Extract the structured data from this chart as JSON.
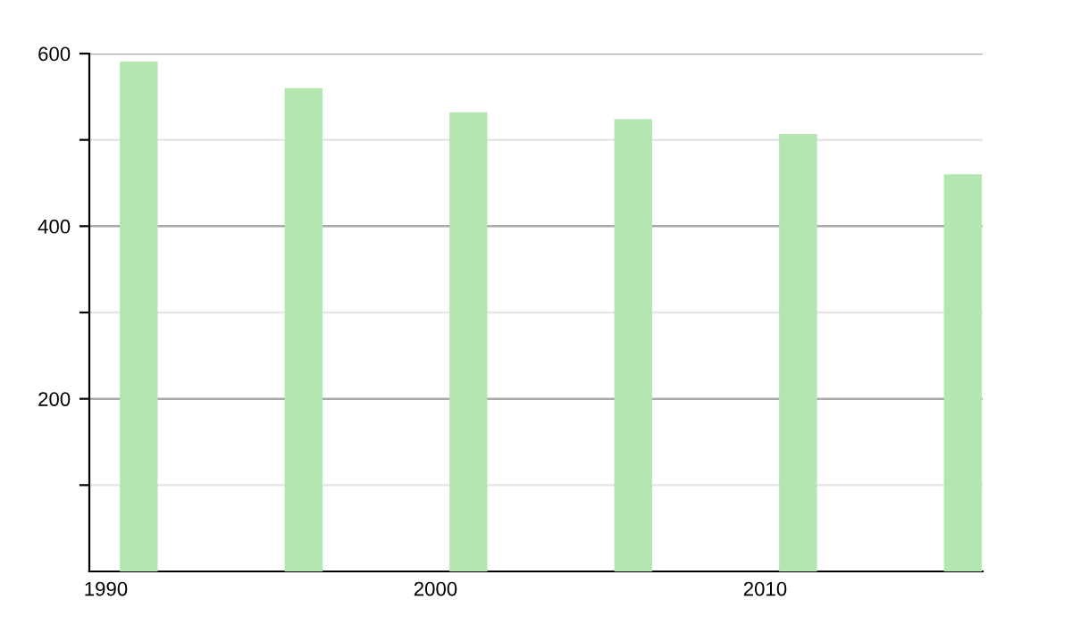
{
  "chart_data": {
    "type": "bar",
    "x": [
      1991,
      1996,
      2001,
      2006,
      2011,
      2016
    ],
    "values": [
      591,
      560,
      532,
      524,
      507,
      460
    ],
    "color": "#b3e6b0",
    "xlim": [
      1989.5,
      2016.6
    ],
    "xticks": [
      1990,
      2000,
      2010
    ],
    "ylim": [
      0,
      600
    ],
    "yticks": [
      {
        "value": 100,
        "label": null
      },
      200,
      {
        "value": 300,
        "label": null
      },
      400,
      {
        "value": 500,
        "label": null
      },
      600
    ],
    "grid": "y",
    "legend": false
  }
}
